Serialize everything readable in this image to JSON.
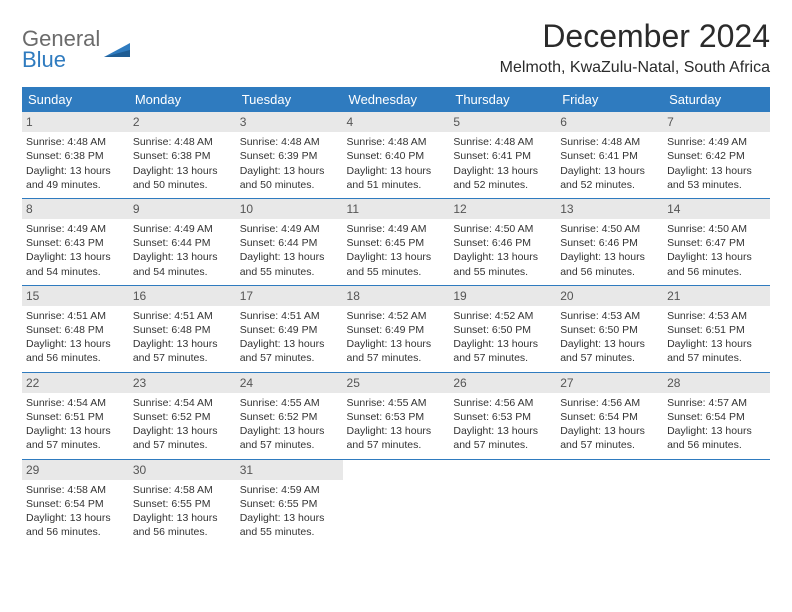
{
  "logo": {
    "general": "General",
    "blue": "Blue"
  },
  "title": "December 2024",
  "location": "Melmoth, KwaZulu-Natal, South Africa",
  "columns": [
    "Sunday",
    "Monday",
    "Tuesday",
    "Wednesday",
    "Thursday",
    "Friday",
    "Saturday"
  ],
  "colors": {
    "header_bg": "#2f7bbf",
    "header_text": "#ffffff",
    "daynum_bg": "#e8e8e8",
    "border": "#2f7bbf",
    "logo_blue": "#2f7bbf",
    "logo_gray": "#6b6b6b",
    "body_bg": "#ffffff",
    "text": "#333333"
  },
  "fonts": {
    "title_size_pt": 24,
    "location_size_pt": 12,
    "header_size_pt": 10,
    "cell_size_pt": 8,
    "daynum_size_pt": 9
  },
  "weeks": [
    [
      {
        "n": "1",
        "sr": "Sunrise: 4:48 AM",
        "ss": "Sunset: 6:38 PM",
        "d1": "Daylight: 13 hours",
        "d2": "and 49 minutes."
      },
      {
        "n": "2",
        "sr": "Sunrise: 4:48 AM",
        "ss": "Sunset: 6:38 PM",
        "d1": "Daylight: 13 hours",
        "d2": "and 50 minutes."
      },
      {
        "n": "3",
        "sr": "Sunrise: 4:48 AM",
        "ss": "Sunset: 6:39 PM",
        "d1": "Daylight: 13 hours",
        "d2": "and 50 minutes."
      },
      {
        "n": "4",
        "sr": "Sunrise: 4:48 AM",
        "ss": "Sunset: 6:40 PM",
        "d1": "Daylight: 13 hours",
        "d2": "and 51 minutes."
      },
      {
        "n": "5",
        "sr": "Sunrise: 4:48 AM",
        "ss": "Sunset: 6:41 PM",
        "d1": "Daylight: 13 hours",
        "d2": "and 52 minutes."
      },
      {
        "n": "6",
        "sr": "Sunrise: 4:48 AM",
        "ss": "Sunset: 6:41 PM",
        "d1": "Daylight: 13 hours",
        "d2": "and 52 minutes."
      },
      {
        "n": "7",
        "sr": "Sunrise: 4:49 AM",
        "ss": "Sunset: 6:42 PM",
        "d1": "Daylight: 13 hours",
        "d2": "and 53 minutes."
      }
    ],
    [
      {
        "n": "8",
        "sr": "Sunrise: 4:49 AM",
        "ss": "Sunset: 6:43 PM",
        "d1": "Daylight: 13 hours",
        "d2": "and 54 minutes."
      },
      {
        "n": "9",
        "sr": "Sunrise: 4:49 AM",
        "ss": "Sunset: 6:44 PM",
        "d1": "Daylight: 13 hours",
        "d2": "and 54 minutes."
      },
      {
        "n": "10",
        "sr": "Sunrise: 4:49 AM",
        "ss": "Sunset: 6:44 PM",
        "d1": "Daylight: 13 hours",
        "d2": "and 55 minutes."
      },
      {
        "n": "11",
        "sr": "Sunrise: 4:49 AM",
        "ss": "Sunset: 6:45 PM",
        "d1": "Daylight: 13 hours",
        "d2": "and 55 minutes."
      },
      {
        "n": "12",
        "sr": "Sunrise: 4:50 AM",
        "ss": "Sunset: 6:46 PM",
        "d1": "Daylight: 13 hours",
        "d2": "and 55 minutes."
      },
      {
        "n": "13",
        "sr": "Sunrise: 4:50 AM",
        "ss": "Sunset: 6:46 PM",
        "d1": "Daylight: 13 hours",
        "d2": "and 56 minutes."
      },
      {
        "n": "14",
        "sr": "Sunrise: 4:50 AM",
        "ss": "Sunset: 6:47 PM",
        "d1": "Daylight: 13 hours",
        "d2": "and 56 minutes."
      }
    ],
    [
      {
        "n": "15",
        "sr": "Sunrise: 4:51 AM",
        "ss": "Sunset: 6:48 PM",
        "d1": "Daylight: 13 hours",
        "d2": "and 56 minutes."
      },
      {
        "n": "16",
        "sr": "Sunrise: 4:51 AM",
        "ss": "Sunset: 6:48 PM",
        "d1": "Daylight: 13 hours",
        "d2": "and 57 minutes."
      },
      {
        "n": "17",
        "sr": "Sunrise: 4:51 AM",
        "ss": "Sunset: 6:49 PM",
        "d1": "Daylight: 13 hours",
        "d2": "and 57 minutes."
      },
      {
        "n": "18",
        "sr": "Sunrise: 4:52 AM",
        "ss": "Sunset: 6:49 PM",
        "d1": "Daylight: 13 hours",
        "d2": "and 57 minutes."
      },
      {
        "n": "19",
        "sr": "Sunrise: 4:52 AM",
        "ss": "Sunset: 6:50 PM",
        "d1": "Daylight: 13 hours",
        "d2": "and 57 minutes."
      },
      {
        "n": "20",
        "sr": "Sunrise: 4:53 AM",
        "ss": "Sunset: 6:50 PM",
        "d1": "Daylight: 13 hours",
        "d2": "and 57 minutes."
      },
      {
        "n": "21",
        "sr": "Sunrise: 4:53 AM",
        "ss": "Sunset: 6:51 PM",
        "d1": "Daylight: 13 hours",
        "d2": "and 57 minutes."
      }
    ],
    [
      {
        "n": "22",
        "sr": "Sunrise: 4:54 AM",
        "ss": "Sunset: 6:51 PM",
        "d1": "Daylight: 13 hours",
        "d2": "and 57 minutes."
      },
      {
        "n": "23",
        "sr": "Sunrise: 4:54 AM",
        "ss": "Sunset: 6:52 PM",
        "d1": "Daylight: 13 hours",
        "d2": "and 57 minutes."
      },
      {
        "n": "24",
        "sr": "Sunrise: 4:55 AM",
        "ss": "Sunset: 6:52 PM",
        "d1": "Daylight: 13 hours",
        "d2": "and 57 minutes."
      },
      {
        "n": "25",
        "sr": "Sunrise: 4:55 AM",
        "ss": "Sunset: 6:53 PM",
        "d1": "Daylight: 13 hours",
        "d2": "and 57 minutes."
      },
      {
        "n": "26",
        "sr": "Sunrise: 4:56 AM",
        "ss": "Sunset: 6:53 PM",
        "d1": "Daylight: 13 hours",
        "d2": "and 57 minutes."
      },
      {
        "n": "27",
        "sr": "Sunrise: 4:56 AM",
        "ss": "Sunset: 6:54 PM",
        "d1": "Daylight: 13 hours",
        "d2": "and 57 minutes."
      },
      {
        "n": "28",
        "sr": "Sunrise: 4:57 AM",
        "ss": "Sunset: 6:54 PM",
        "d1": "Daylight: 13 hours",
        "d2": "and 56 minutes."
      }
    ],
    [
      {
        "n": "29",
        "sr": "Sunrise: 4:58 AM",
        "ss": "Sunset: 6:54 PM",
        "d1": "Daylight: 13 hours",
        "d2": "and 56 minutes."
      },
      {
        "n": "30",
        "sr": "Sunrise: 4:58 AM",
        "ss": "Sunset: 6:55 PM",
        "d1": "Daylight: 13 hours",
        "d2": "and 56 minutes."
      },
      {
        "n": "31",
        "sr": "Sunrise: 4:59 AM",
        "ss": "Sunset: 6:55 PM",
        "d1": "Daylight: 13 hours",
        "d2": "and 55 minutes."
      },
      {
        "empty": true
      },
      {
        "empty": true
      },
      {
        "empty": true
      },
      {
        "empty": true
      }
    ]
  ]
}
